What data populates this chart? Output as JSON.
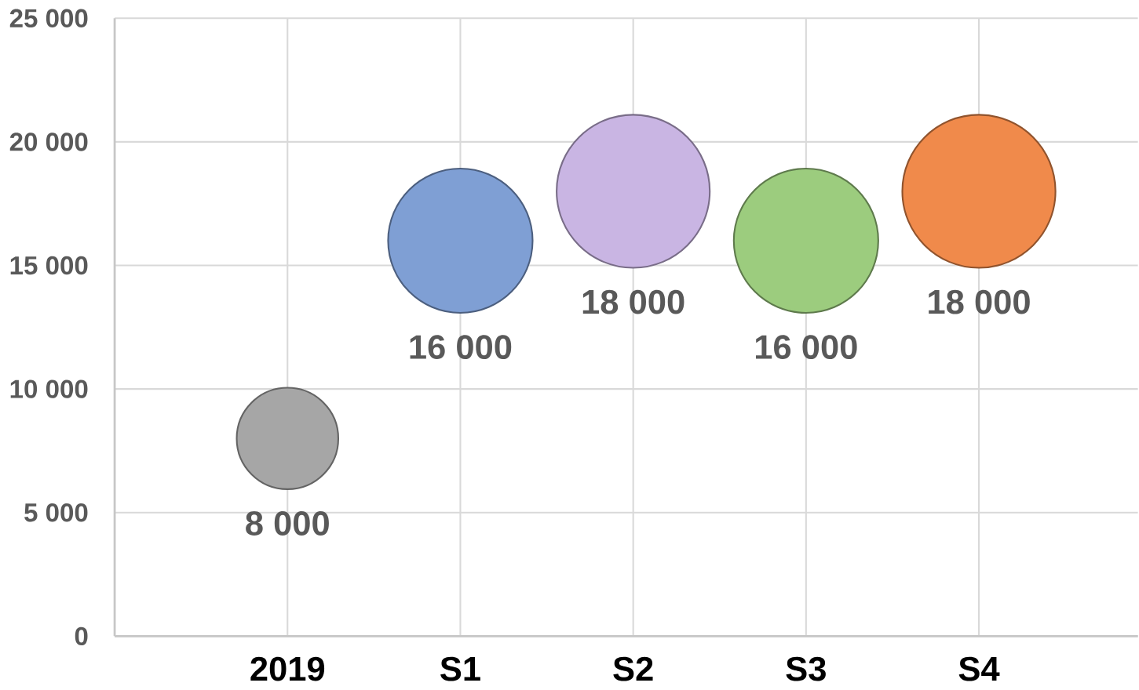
{
  "chart_data": {
    "type": "bubble",
    "categories": [
      "2019",
      "S1",
      "S2",
      "S3",
      "S4"
    ],
    "values": [
      8000,
      16000,
      18000,
      16000,
      18000
    ],
    "sizes": [
      0.44,
      0.89,
      1,
      0.89,
      1
    ],
    "colors": [
      "#a6a6a6",
      "#7f9fd4",
      "#c9b5e3",
      "#9ccc7e",
      "#f08a4b"
    ],
    "value_labels": [
      "8 000",
      "16 000",
      "18 000",
      "16 000",
      "18 000"
    ],
    "ylim": [
      0,
      25000
    ],
    "yticks": [
      {
        "value": 0,
        "label": "0"
      },
      {
        "value": 5000,
        "label": "5 000"
      },
      {
        "value": 10000,
        "label": "10 000"
      },
      {
        "value": 15000,
        "label": "15 000"
      },
      {
        "value": 20000,
        "label": "20 000"
      },
      {
        "value": 25000,
        "label": "25 000"
      }
    ],
    "grid": true
  }
}
